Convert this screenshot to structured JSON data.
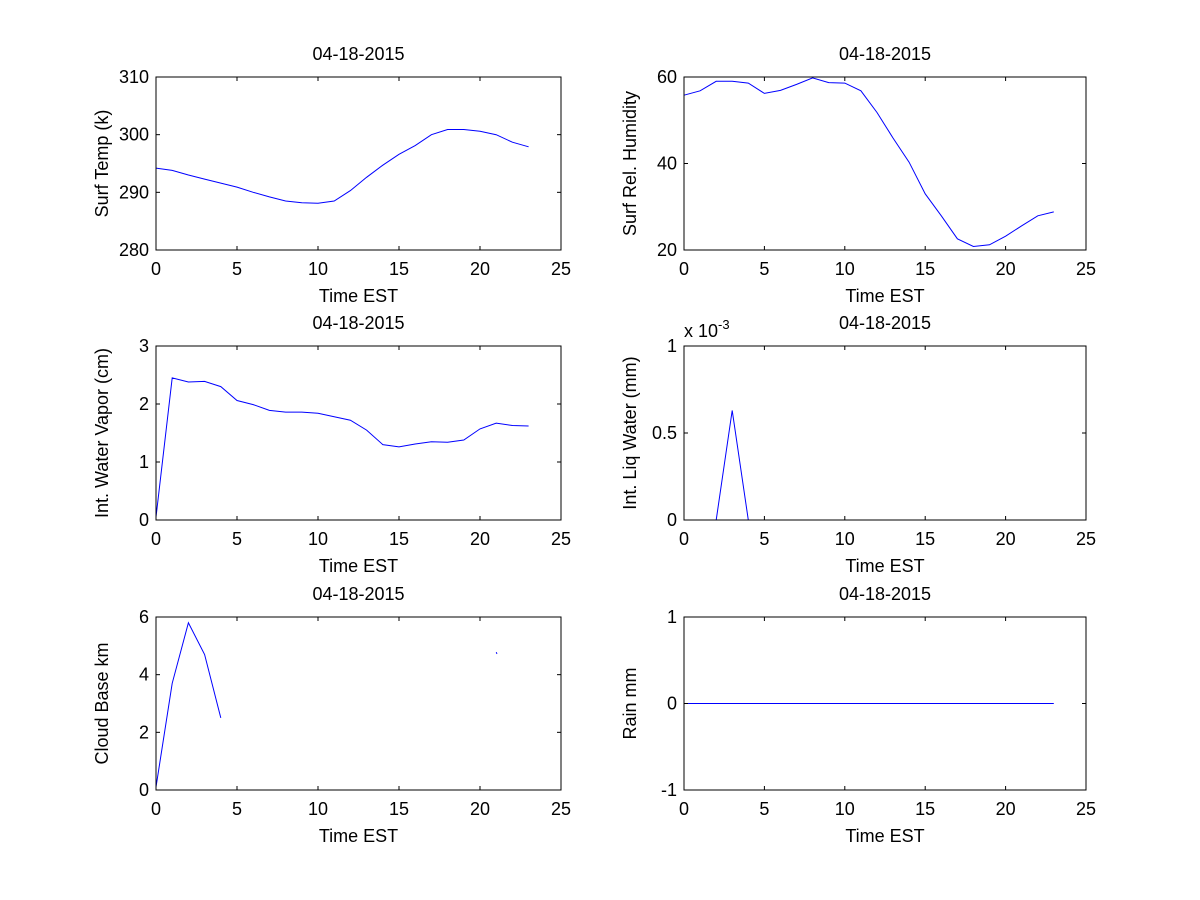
{
  "figure": {
    "background": "#ffffff",
    "line_color": "#0000ff"
  },
  "chart_data": [
    {
      "type": "line",
      "title": "04-18-2015",
      "xlabel": "Time EST",
      "ylabel": "Surf Temp (k)",
      "xlim": [
        0,
        25
      ],
      "ylim": [
        280,
        310
      ],
      "xticks": [
        "0",
        "5",
        "10",
        "15",
        "20",
        "25"
      ],
      "yticks": [
        "280",
        "290",
        "300",
        "310"
      ],
      "series": [
        {
          "name": "Surf Temp",
          "segments": [
            [
              [
                0,
                294.2
              ],
              [
                1,
                293.8
              ],
              [
                2,
                293.0
              ],
              [
                3,
                292.3
              ],
              [
                4,
                291.6
              ],
              [
                5,
                290.9
              ],
              [
                6,
                290.0
              ],
              [
                7,
                289.2
              ],
              [
                8,
                288.5
              ],
              [
                9,
                288.2
              ],
              [
                10,
                288.1
              ],
              [
                11,
                288.5
              ],
              [
                12,
                290.3
              ],
              [
                13,
                292.6
              ],
              [
                14,
                294.7
              ],
              [
                15,
                296.6
              ],
              [
                16,
                298.1
              ],
              [
                17,
                300.0
              ],
              [
                18,
                300.9
              ],
              [
                19,
                300.9
              ],
              [
                20,
                300.6
              ],
              [
                21,
                300.0
              ],
              [
                22,
                298.7
              ],
              [
                23,
                297.9
              ]
            ]
          ]
        }
      ]
    },
    {
      "type": "line",
      "title": "04-18-2015",
      "xlabel": "Time EST",
      "ylabel": "Surf Rel. Humidity",
      "xlim": [
        0,
        25
      ],
      "ylim": [
        20,
        60
      ],
      "xticks": [
        "0",
        "5",
        "10",
        "15",
        "20",
        "25"
      ],
      "yticks": [
        "20",
        "40",
        "60"
      ],
      "series": [
        {
          "name": "Surf Rel. Humidity",
          "segments": [
            [
              [
                0,
                55.8
              ],
              [
                1,
                56.8
              ],
              [
                2,
                59.0
              ],
              [
                3,
                59.0
              ],
              [
                4,
                58.6
              ],
              [
                5,
                56.2
              ],
              [
                6,
                56.9
              ],
              [
                7,
                58.3
              ],
              [
                8,
                59.8
              ],
              [
                9,
                58.7
              ],
              [
                10,
                58.6
              ],
              [
                11,
                56.8
              ],
              [
                12,
                51.8
              ],
              [
                13,
                45.9
              ],
              [
                14,
                40.3
              ],
              [
                15,
                33.0
              ],
              [
                16,
                27.9
              ],
              [
                17,
                22.6
              ],
              [
                18,
                20.8
              ],
              [
                19,
                21.2
              ],
              [
                20,
                23.2
              ],
              [
                21,
                25.6
              ],
              [
                22,
                27.9
              ],
              [
                23,
                28.8
              ]
            ]
          ]
        }
      ]
    },
    {
      "type": "line",
      "title": "04-18-2015",
      "xlabel": "Time EST",
      "ylabel": "Int. Water Vapor (cm)",
      "xlim": [
        0,
        25
      ],
      "ylim": [
        0,
        3
      ],
      "xticks": [
        "0",
        "5",
        "10",
        "15",
        "20",
        "25"
      ],
      "yticks": [
        "0",
        "1",
        "2",
        "3"
      ],
      "series": [
        {
          "name": "Int. Water Vapor",
          "segments": [
            [
              [
                0,
                0.05
              ],
              [
                1,
                2.45
              ],
              [
                2,
                2.38
              ],
              [
                3,
                2.39
              ],
              [
                4,
                2.3
              ],
              [
                5,
                2.06
              ],
              [
                6,
                1.99
              ],
              [
                7,
                1.89
              ],
              [
                8,
                1.86
              ],
              [
                9,
                1.86
              ],
              [
                10,
                1.84
              ],
              [
                11,
                1.78
              ],
              [
                12,
                1.72
              ],
              [
                13,
                1.55
              ],
              [
                14,
                1.3
              ],
              [
                15,
                1.26
              ],
              [
                16,
                1.31
              ],
              [
                17,
                1.35
              ],
              [
                18,
                1.34
              ],
              [
                19,
                1.38
              ],
              [
                20,
                1.57
              ],
              [
                21,
                1.67
              ],
              [
                22,
                1.63
              ],
              [
                23,
                1.62
              ]
            ]
          ]
        }
      ]
    },
    {
      "type": "line",
      "title": "04-18-2015",
      "xlabel": "Time EST",
      "ylabel": "Int. Liq Water (mm)",
      "xlim": [
        0,
        25
      ],
      "ylim": [
        0,
        0.001
      ],
      "xticks": [
        "0",
        "5",
        "10",
        "15",
        "20",
        "25"
      ],
      "yticks": [
        "0",
        "0.5",
        "1"
      ],
      "exponent_label": "x 10",
      "exponent_power": "-3",
      "series": [
        {
          "name": "Int. Liq Water",
          "segments": [
            [
              [
                2,
                0
              ],
              [
                3,
                0.00063
              ],
              [
                4,
                0
              ]
            ]
          ]
        }
      ]
    },
    {
      "type": "line",
      "title": "04-18-2015",
      "xlabel": "Time EST",
      "ylabel": "Cloud Base km",
      "xlim": [
        0,
        25
      ],
      "ylim": [
        0,
        6
      ],
      "xticks": [
        "0",
        "5",
        "10",
        "15",
        "20",
        "25"
      ],
      "yticks": [
        "0",
        "2",
        "4",
        "6"
      ],
      "series": [
        {
          "name": "Cloud Base",
          "segments": [
            [
              [
                0,
                0.1
              ],
              [
                1,
                3.7
              ],
              [
                2,
                5.8
              ],
              [
                3,
                4.7
              ],
              [
                4,
                2.5
              ]
            ],
            [
              [
                21,
                4.78
              ],
              [
                21.05,
                4.72
              ]
            ]
          ]
        }
      ]
    },
    {
      "type": "line",
      "title": "04-18-2015",
      "xlabel": "Time EST",
      "ylabel": "Rain mm",
      "xlim": [
        0,
        25
      ],
      "ylim": [
        -1,
        1
      ],
      "xticks": [
        "0",
        "5",
        "10",
        "15",
        "20",
        "25"
      ],
      "yticks": [
        "-1",
        "0",
        "1"
      ],
      "series": [
        {
          "name": "Rain",
          "segments": [
            [
              [
                0,
                0
              ],
              [
                23,
                0
              ]
            ]
          ]
        }
      ]
    }
  ]
}
